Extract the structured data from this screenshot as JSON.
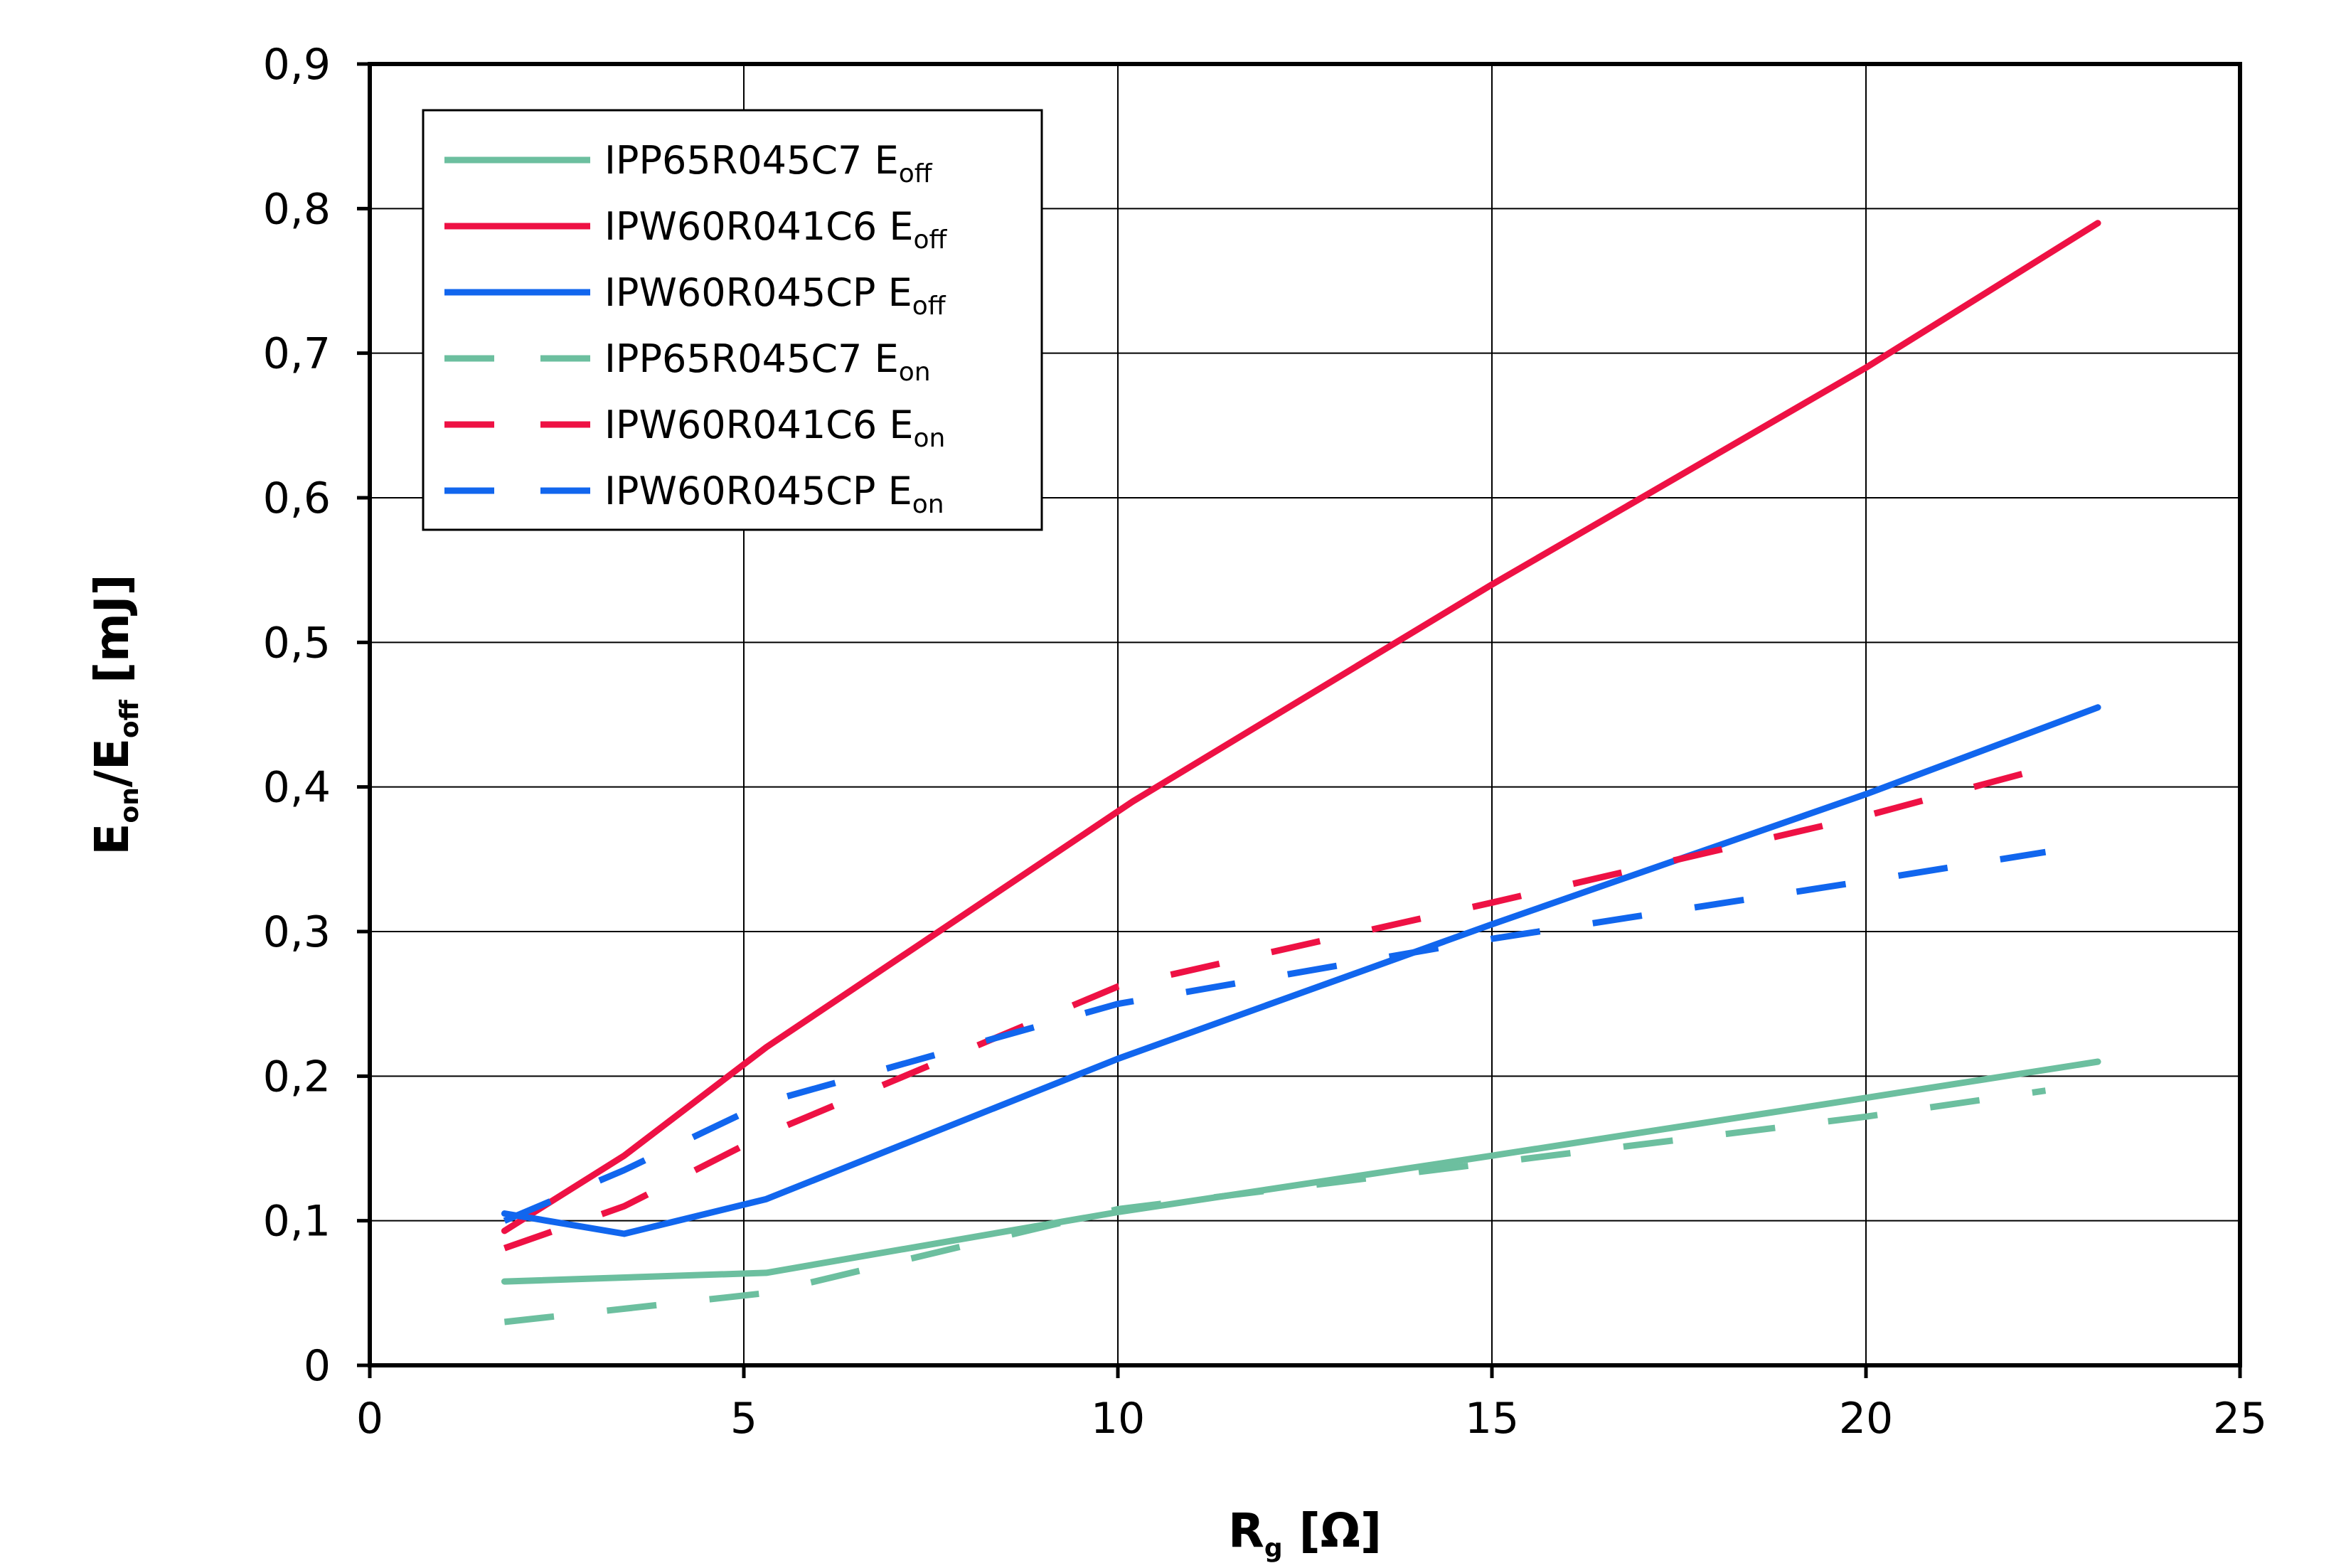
{
  "chart_data": {
    "type": "line",
    "xlabel": {
      "main": "R",
      "sub": "g",
      "rest": " [Ω]"
    },
    "ylabel": {
      "p1": "E",
      "s1": "on",
      "p2": "/E",
      "s2": "off",
      "rest": " [mJ]"
    },
    "xlim": [
      0,
      25
    ],
    "ylim": [
      0,
      0.9
    ],
    "grid": true,
    "legend_position": "top-left",
    "x_ticks": [
      0,
      5,
      10,
      15,
      20,
      25
    ],
    "y_ticks": [
      0,
      0.1,
      0.2,
      0.3,
      0.4,
      0.5,
      0.6,
      0.7,
      0.8,
      0.9
    ],
    "x_tick_labels": [
      "0",
      "5",
      "10",
      "15",
      "20",
      "25"
    ],
    "y_tick_labels": [
      "0",
      "0,1",
      "0,2",
      "0,3",
      "0,4",
      "0,5",
      "0,6",
      "0,7",
      "0,8",
      "0,9"
    ],
    "series": [
      {
        "name": "IPP65R045C7 E_off",
        "label_main": "IPP65R045C7 E",
        "label_sub": "off",
        "color": "#6cbf9f",
        "dash": "solid",
        "x": [
          1.8,
          5.3,
          10,
          15,
          20,
          23.1
        ],
        "y": [
          0.058,
          0.064,
          0.106,
          0.145,
          0.185,
          0.21
        ]
      },
      {
        "name": "IPW60R041C6 E_off",
        "label_main": "IPW60R041C6 E",
        "label_sub": "off",
        "color": "#ee1144",
        "dash": "solid",
        "x": [
          1.8,
          3.4,
          5.3,
          10.2,
          15,
          20,
          23.1
        ],
        "y": [
          0.093,
          0.145,
          0.22,
          0.39,
          0.54,
          0.69,
          0.79
        ]
      },
      {
        "name": "IPW60R045CP E_off",
        "label_main": "IPW60R045CP E",
        "label_sub": "off",
        "color": "#1166ee",
        "dash": "solid",
        "x": [
          1.8,
          3.4,
          5.3,
          10,
          15,
          20,
          23.1
        ],
        "y": [
          0.105,
          0.091,
          0.115,
          0.212,
          0.305,
          0.395,
          0.455
        ]
      },
      {
        "name": "IPP65R045C7 E_on",
        "label_main": "IPP65R045C7 E",
        "label_sub": "on",
        "color": "#6cbf9f",
        "dash": "dashed",
        "x": [
          1.8,
          5.3,
          10,
          15,
          20,
          22.4
        ],
        "y": [
          0.03,
          0.05,
          0.108,
          0.14,
          0.172,
          0.19
        ]
      },
      {
        "name": "IPW60R041C6 E_on",
        "label_main": "IPW60R041C6 E",
        "label_sub": "on",
        "color": "#ee1144",
        "dash": "dashed",
        "x": [
          1.8,
          3.4,
          5.3,
          10,
          15,
          20,
          22.3
        ],
        "y": [
          0.081,
          0.11,
          0.16,
          0.262,
          0.32,
          0.38,
          0.412
        ]
      },
      {
        "name": "IPW60R045CP E_on",
        "label_main": "IPW60R045CP E",
        "label_sub": "on",
        "color": "#1166ee",
        "dash": "dashed",
        "x": [
          1.8,
          3.4,
          5.3,
          10,
          15,
          20,
          22.4
        ],
        "y": [
          0.1,
          0.135,
          0.182,
          0.25,
          0.295,
          0.335,
          0.355
        ]
      }
    ]
  }
}
